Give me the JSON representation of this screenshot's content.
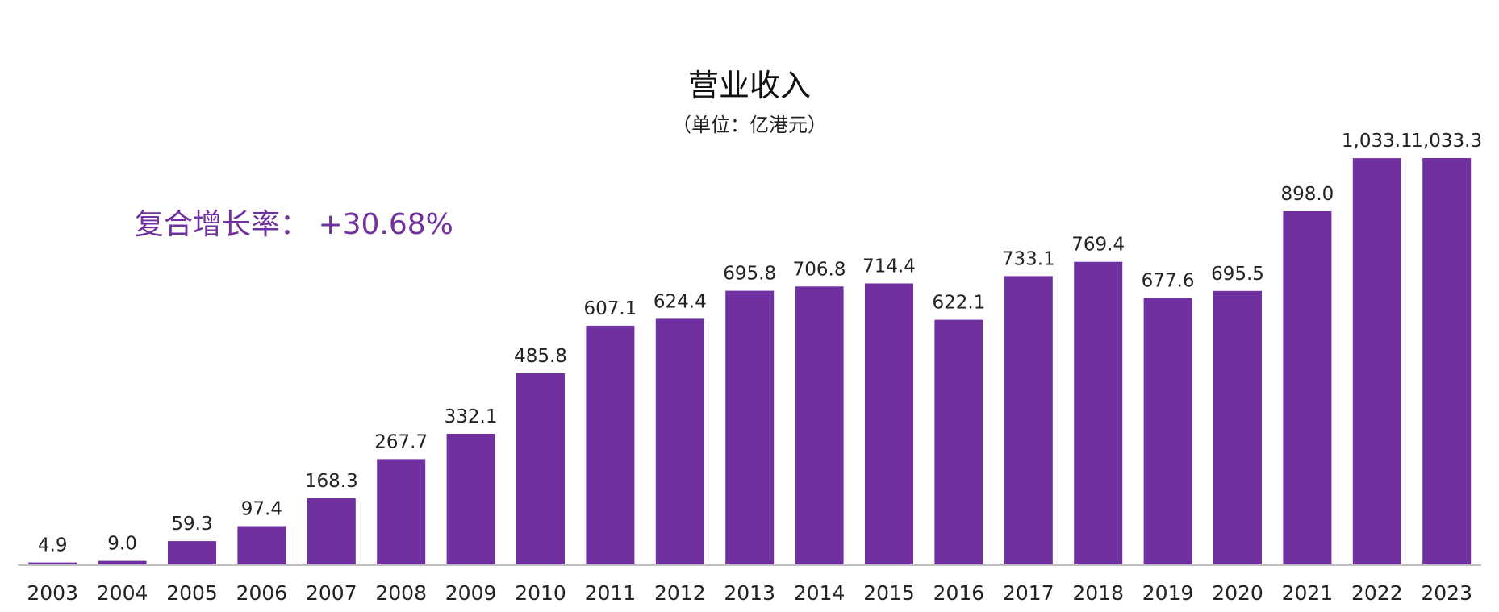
{
  "colors": {
    "bar": "#7030A0",
    "cagr_text": "#7030A0",
    "axis": "#bfbfbf"
  },
  "chart_data": {
    "type": "bar",
    "title": "营业收入",
    "subtitle": "（单位：亿港元）",
    "annotation": "复合增长率：  +30.68%",
    "categories": [
      "2003",
      "2004",
      "2005",
      "2006",
      "2007",
      "2008",
      "2009",
      "2010",
      "2011",
      "2012",
      "2013",
      "2014",
      "2015",
      "2016",
      "2017",
      "2018",
      "2019",
      "2020",
      "2021",
      "2022",
      "2023"
    ],
    "values": [
      4.9,
      9.0,
      59.3,
      97.4,
      168.3,
      267.7,
      332.1,
      485.8,
      607.1,
      624.4,
      695.8,
      706.8,
      714.4,
      622.1,
      733.1,
      769.4,
      677.6,
      695.5,
      898.0,
      1033.1,
      1033.3
    ],
    "value_labels": [
      "4.9",
      "9.0",
      "59.3",
      "97.4",
      "168.3",
      "267.7",
      "332.1",
      "485.8",
      "607.1",
      "624.4",
      "695.8",
      "706.8",
      "714.4",
      "622.1",
      "733.1",
      "769.4",
      "677.6",
      "695.5",
      "898.0",
      "1,033.1",
      "1,033.3"
    ],
    "ylim": [
      0,
      1033.3
    ],
    "grid": false,
    "legend": "none"
  }
}
